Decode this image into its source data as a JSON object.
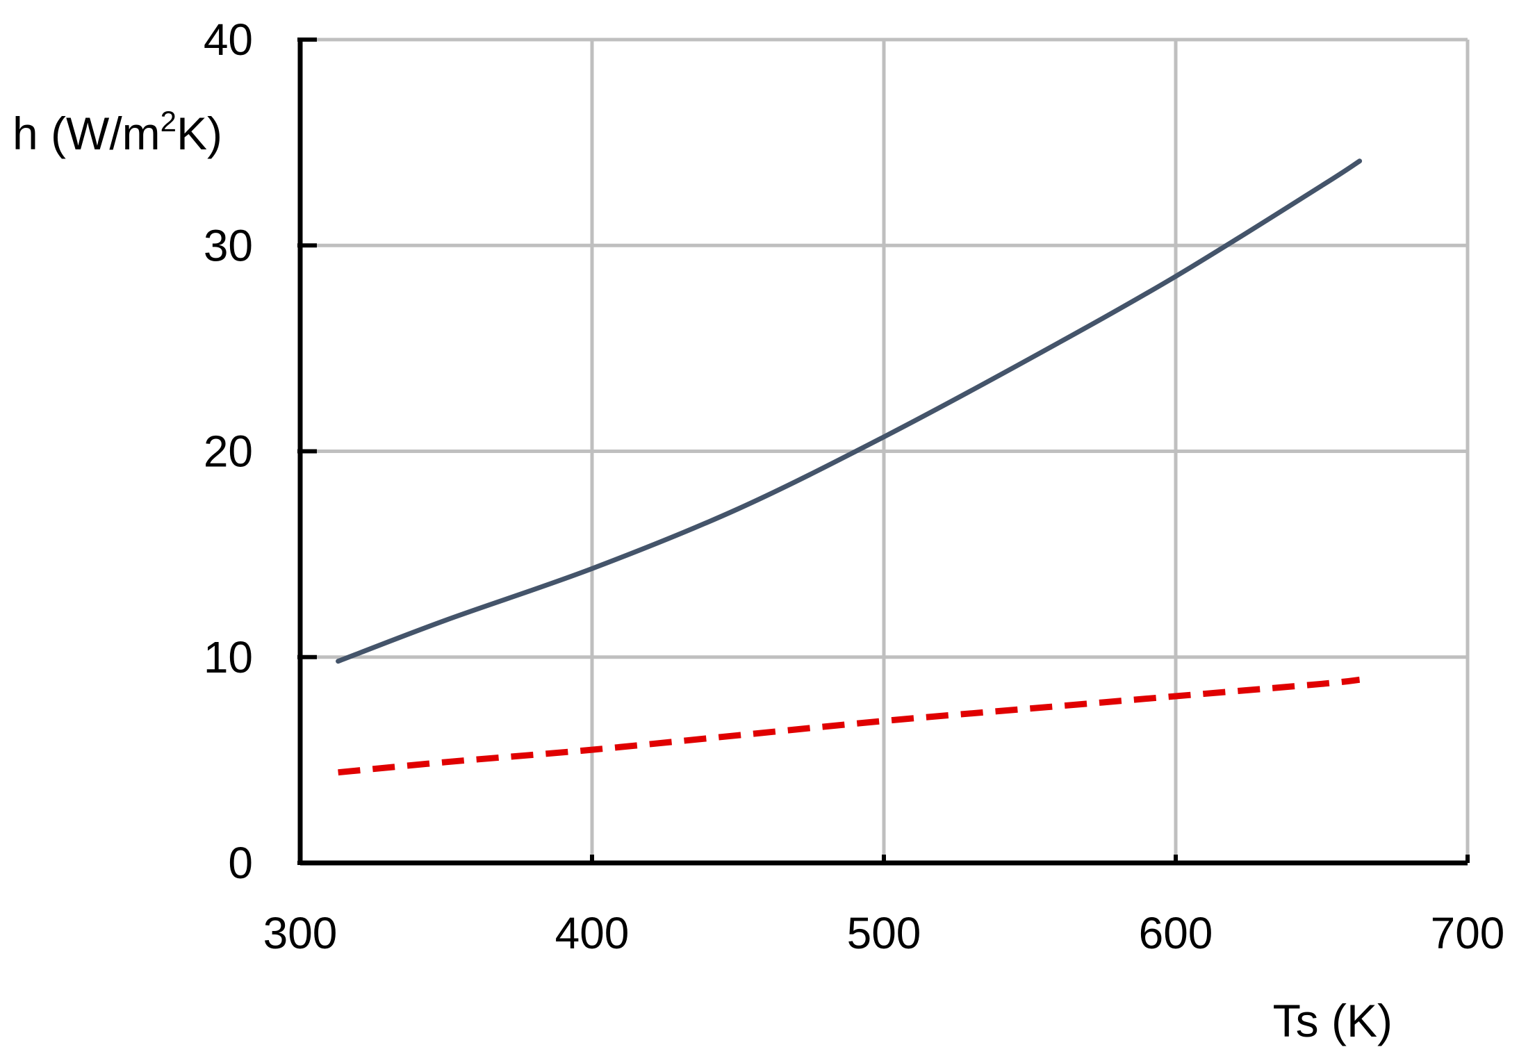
{
  "chart_data": {
    "type": "line",
    "title": "",
    "ylabel": {
      "prefix": "h (W/m",
      "superscript": "2",
      "suffix": "K)"
    },
    "xlabel": "Ts (K)",
    "xlim": [
      300,
      700
    ],
    "ylim": [
      0,
      40
    ],
    "xticks": [
      300,
      400,
      500,
      600,
      700
    ],
    "yticks": [
      0,
      10,
      20,
      30,
      40
    ],
    "grid": true,
    "legend": "none",
    "series": [
      {
        "style": "solid",
        "color": "#44546a",
        "x": [
          313,
          350,
          400,
          450,
          500,
          550,
          600,
          650,
          663
        ],
        "y": [
          9.8,
          11.8,
          14.3,
          17.2,
          20.7,
          24.5,
          28.5,
          32.9,
          34.1
        ]
      },
      {
        "style": "dashed",
        "color": "#e00000",
        "x": [
          313,
          350,
          400,
          450,
          500,
          550,
          600,
          650,
          663
        ],
        "y": [
          4.4,
          4.9,
          5.5,
          6.2,
          6.9,
          7.5,
          8.1,
          8.7,
          8.9
        ]
      }
    ],
    "colors": {
      "axis": "#000000",
      "grid": "#bfbfbf"
    }
  }
}
